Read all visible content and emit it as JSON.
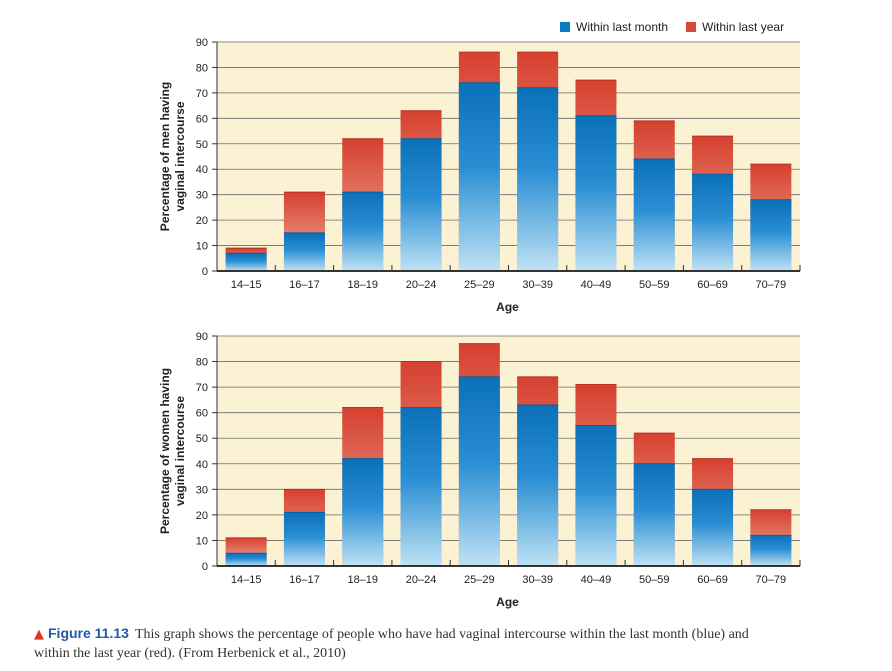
{
  "legend": {
    "month_label": "Within last month",
    "year_label": "Within last year",
    "month_color": "#0a7cc2",
    "year_color": "#d9453a"
  },
  "chart_data": [
    {
      "type": "bar",
      "categories": [
        "14–15",
        "16–17",
        "18–19",
        "20–24",
        "25–29",
        "30–39",
        "40–49",
        "50–59",
        "60–69",
        "70–79"
      ],
      "series": [
        {
          "name": "Within last month",
          "values": [
            7,
            15,
            31,
            52,
            74,
            72,
            61,
            44,
            38,
            28
          ]
        },
        {
          "name": "Within last year",
          "values": [
            9,
            31,
            52,
            63,
            86,
            86,
            75,
            59,
            53,
            42
          ]
        }
      ],
      "xlabel": "Age",
      "ylabel": "Percentage of men having vaginal intercourse",
      "ylim": [
        0,
        90
      ],
      "yticks": [
        0,
        10,
        20,
        30,
        40,
        50,
        60,
        70,
        80,
        90
      ],
      "grid": true,
      "legend": "top-right"
    },
    {
      "type": "bar",
      "categories": [
        "14–15",
        "16–17",
        "18–19",
        "20–24",
        "25–29",
        "30–39",
        "40–49",
        "50–59",
        "60–69",
        "70–79"
      ],
      "series": [
        {
          "name": "Within last month",
          "values": [
            5,
            21,
            42,
            62,
            74,
            63,
            55,
            40,
            30,
            12
          ]
        },
        {
          "name": "Within last year",
          "values": [
            11,
            30,
            62,
            80,
            87,
            74,
            71,
            52,
            42,
            22
          ]
        }
      ],
      "xlabel": "Age",
      "ylabel": "Percentage of women having vaginal intercourse",
      "ylim": [
        0,
        90
      ],
      "yticks": [
        0,
        10,
        20,
        30,
        40,
        50,
        60,
        70,
        80,
        90
      ],
      "grid": true
    }
  ],
  "caption": {
    "marker": "▲",
    "figure_label": "Figure 11.13",
    "text": "This graph shows the percentage of people who have had vaginal intercourse within the last month (blue) and within the last year (red). (From Herbenick et al., 2010)"
  }
}
